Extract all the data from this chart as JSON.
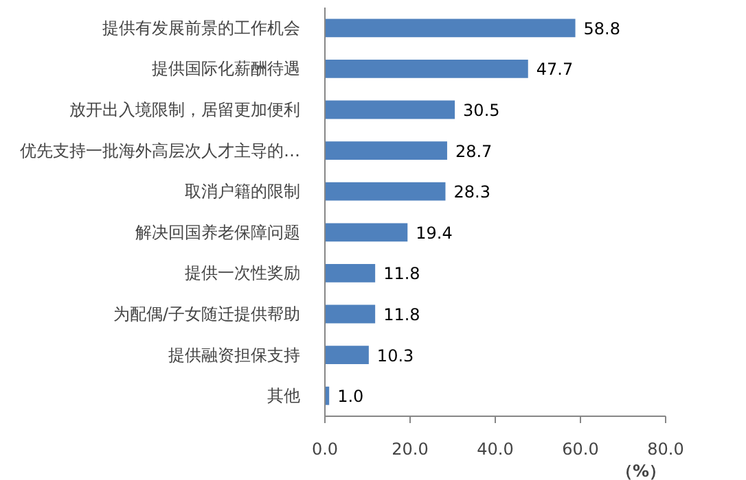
{
  "chart_data": {
    "type": "bar",
    "orientation": "horizontal",
    "xlabel": "（%）",
    "categories": [
      "提供有发展前景的工作机会",
      "提供国际化薪酬待遇",
      "放开出入境限制，居留更加便利",
      "优先支持一批海外高层次人才主导的…",
      "取消户籍的限制",
      "解决回国养老保障问题",
      "提供一次性奖励",
      "为配偶/子女随迁提供帮助",
      "提供融资担保支持",
      "其他"
    ],
    "values": [
      58.8,
      47.7,
      30.5,
      28.7,
      28.3,
      19.4,
      11.8,
      11.8,
      10.3,
      1.0
    ],
    "color": "#4f81bd",
    "xlim": [
      0,
      80
    ],
    "xticks": [
      {
        "value": 0,
        "label": "0.0"
      },
      {
        "value": 20,
        "label": "20.0"
      },
      {
        "value": 40,
        "label": "40.0"
      },
      {
        "value": 60,
        "label": "60.0"
      },
      {
        "value": 80,
        "label": "80.0"
      }
    ],
    "value_labels": [
      "58.8",
      "47.7",
      "30.5",
      "28.7",
      "28.3",
      "19.4",
      "11.8",
      "11.8",
      "10.3",
      "1.0"
    ],
    "grid": false
  }
}
